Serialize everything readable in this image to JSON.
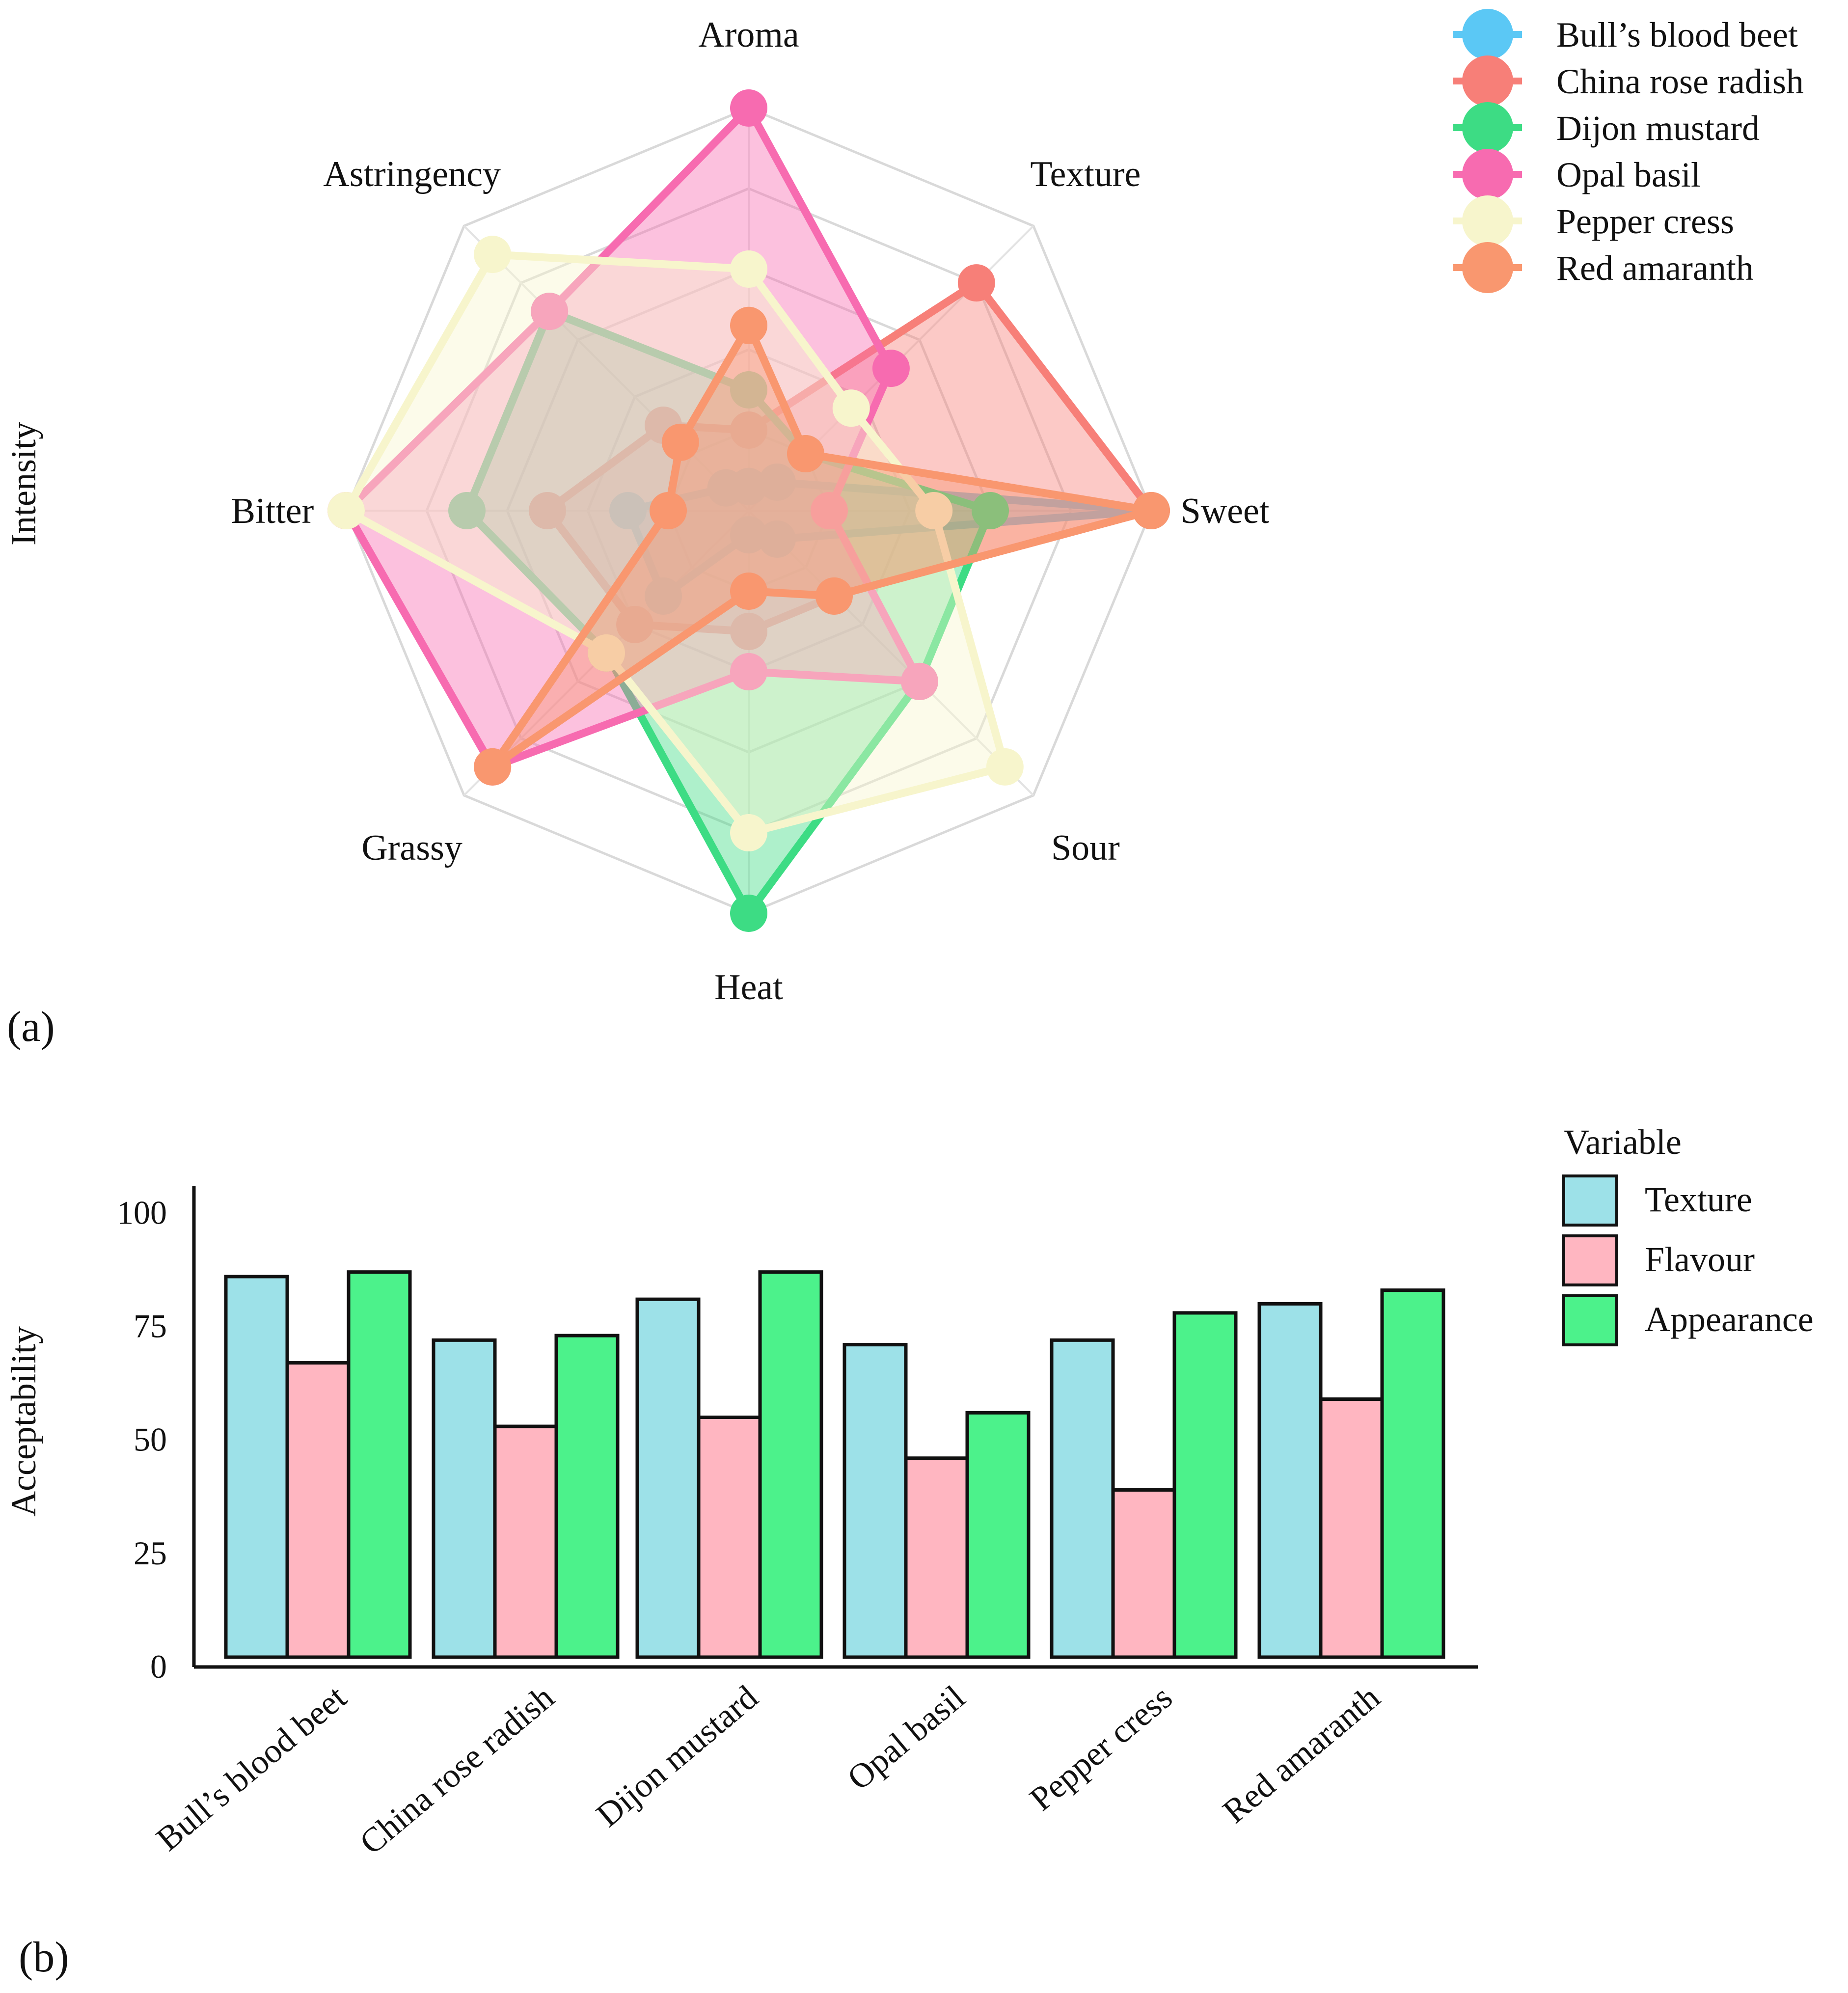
{
  "panels": {
    "a_label": "(a)",
    "b_label": "(b)"
  },
  "chart_data": [
    {
      "type": "radar",
      "panel": "(a)",
      "ylabel": "Intensity",
      "scale_max": 5,
      "grid_levels": 5,
      "axes": [
        "Aroma",
        "Texture",
        "Sweet",
        "Sour",
        "Heat",
        "Grassy",
        "Bitter",
        "Astringency"
      ],
      "legend": {
        "position": "top-right"
      },
      "series": [
        {
          "name": "Bull’s blood beet",
          "color": "#5bc8f5",
          "values": [
            0.3,
            0.5,
            5.0,
            0.5,
            0.3,
            1.5,
            1.5,
            0.4
          ]
        },
        {
          "name": "China rose radish",
          "color": "#f77f78",
          "values": [
            1.0,
            4.0,
            5.0,
            1.5,
            1.5,
            2.0,
            2.5,
            1.5
          ]
        },
        {
          "name": "Dijon mustard",
          "color": "#3ddc84",
          "values": [
            1.5,
            1.0,
            3.0,
            3.0,
            5.0,
            2.5,
            3.5,
            3.5
          ]
        },
        {
          "name": "Opal basil",
          "color": "#f76bb0",
          "values": [
            5.0,
            2.5,
            1.0,
            3.0,
            2.0,
            4.5,
            5.0,
            3.5
          ]
        },
        {
          "name": "Pepper cress",
          "color": "#f7f5cc",
          "values": [
            3.0,
            1.8,
            2.3,
            4.5,
            4.0,
            2.5,
            5.0,
            4.5
          ]
        },
        {
          "name": "Red amaranth",
          "color": "#f9976f",
          "values": [
            2.3,
            1.0,
            5.0,
            1.5,
            1.0,
            4.5,
            1.0,
            1.2
          ]
        }
      ]
    },
    {
      "type": "bar",
      "panel": "(b)",
      "ylabel": "Acceptability",
      "legend_title": "Variable",
      "legend": {
        "position": "right"
      },
      "categories": [
        "Bull’s blood beet",
        "China rose radish",
        "Dijon mustard",
        "Opal basil",
        "Pepper cress",
        "Red amaranth"
      ],
      "yticks": [
        0,
        25,
        50,
        75,
        100
      ],
      "ylim": [
        0,
        106
      ],
      "series": [
        {
          "name": "Texture",
          "color": "#9de1e8",
          "values": [
            86,
            72,
            81,
            71,
            72,
            80
          ]
        },
        {
          "name": "Flavour",
          "color": "#ffb6c1",
          "values": [
            67,
            53,
            55,
            46,
            39,
            59
          ]
        },
        {
          "name": "Appearance",
          "color": "#4cf28b",
          "values": [
            87,
            73,
            87,
            56,
            78,
            83
          ]
        }
      ]
    }
  ]
}
